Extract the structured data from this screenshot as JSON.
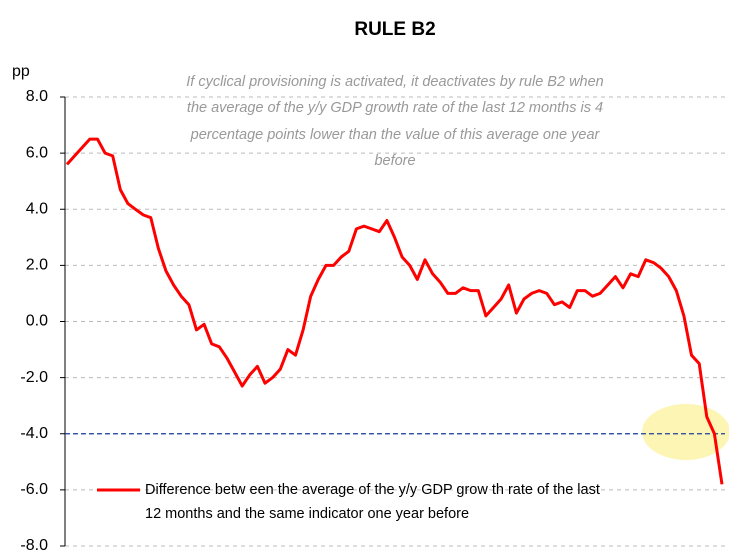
{
  "chart_data": {
    "type": "line",
    "title": "RULE B2",
    "y_label": "pp",
    "annotation": [
      "If cyclical provisioning is activated, it deactivates by rule B2 when",
      "the average of the y/y GDP growth rate of the last 12 months is 4",
      "percentage points lower than the value of this average one year",
      "before"
    ],
    "series": [
      {
        "name": "Difference betw een the average of the y/y GDP grow th rate of the last 12 months and the same indicator one year before",
        "color": "#ff0000",
        "values": [
          5.6,
          5.9,
          6.2,
          6.5,
          6.5,
          6.0,
          5.9,
          4.7,
          4.2,
          4.0,
          3.8,
          3.7,
          2.6,
          1.8,
          1.3,
          0.9,
          0.6,
          -0.3,
          -0.1,
          -0.8,
          -0.9,
          -1.3,
          -1.8,
          -2.3,
          -1.9,
          -1.6,
          -2.2,
          -2.0,
          -1.7,
          -1.0,
          -1.2,
          -0.3,
          0.9,
          1.5,
          2.0,
          2.0,
          2.3,
          2.5,
          3.3,
          3.4,
          3.3,
          3.2,
          3.6,
          3.0,
          2.3,
          2.0,
          1.5,
          2.2,
          1.7,
          1.4,
          1.0,
          1.0,
          1.2,
          1.1,
          1.1,
          0.2,
          0.5,
          0.8,
          1.3,
          0.3,
          0.8,
          1.0,
          1.1,
          1.0,
          0.6,
          0.7,
          0.5,
          1.1,
          1.1,
          0.9,
          1.0,
          1.3,
          1.6,
          1.2,
          1.7,
          1.6,
          2.2,
          2.1,
          1.9,
          1.6,
          1.1,
          0.2,
          -1.2,
          -1.5,
          -3.4,
          -4.0,
          -5.8
        ]
      }
    ],
    "reference_line": {
      "value": -4,
      "color": "#1f3f99"
    },
    "ylim": [
      -8,
      8
    ],
    "yticks": [
      {
        "value": 8,
        "label": "8.0"
      },
      {
        "value": 6,
        "label": "6.0"
      },
      {
        "value": 4,
        "label": "4.0"
      },
      {
        "value": 2,
        "label": "2.0"
      },
      {
        "value": 0,
        "label": "0.0"
      },
      {
        "value": -2,
        "label": "-2.0"
      },
      {
        "value": -4,
        "label": "-4.0"
      },
      {
        "value": -6,
        "label": "-6.0"
      },
      {
        "value": -8,
        "label": "-8.0"
      }
    ],
    "grid": true
  }
}
